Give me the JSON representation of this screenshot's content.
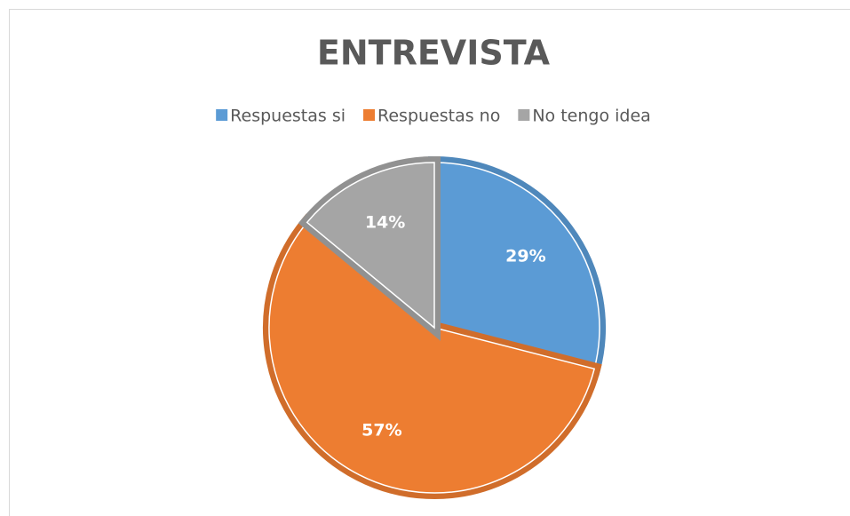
{
  "chart_data": {
    "type": "pie",
    "title": "ENTREVISTA",
    "categories": [
      "Respuestas si",
      "Respuestas no",
      "No tengo idea"
    ],
    "values": [
      29,
      57,
      14
    ],
    "value_labels": [
      "29%",
      "57%",
      "14%"
    ],
    "colors": [
      "#5b9bd5",
      "#ed7d31",
      "#a5a5a5"
    ],
    "legend": "top"
  }
}
